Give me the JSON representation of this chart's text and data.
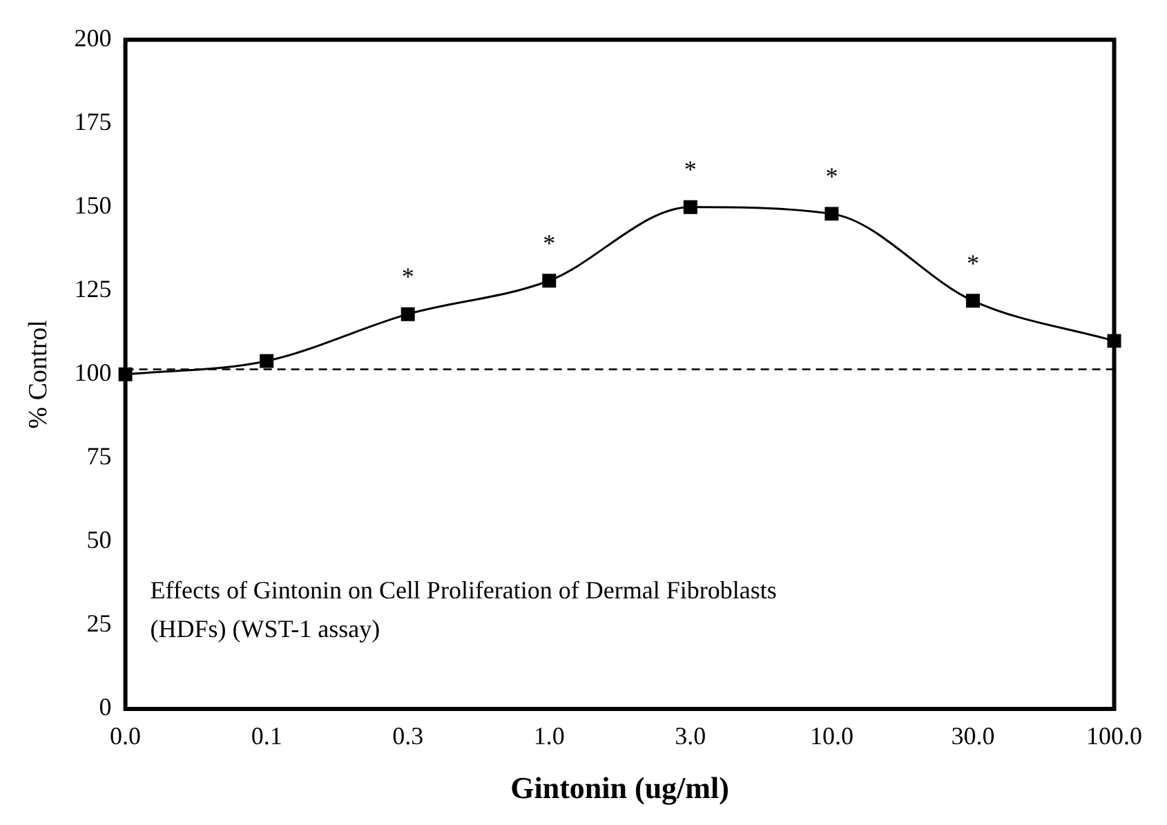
{
  "chart_data": {
    "type": "line",
    "xlabel": "Gintonin (ug/ml)",
    "ylabel": "% Control",
    "categories": [
      "0.0",
      "0.1",
      "0.3",
      "1.0",
      "3.0",
      "10.0",
      "30.0",
      "100.0"
    ],
    "series": [
      {
        "color": "#000000",
        "values": [
          100,
          104,
          118,
          128,
          150,
          148,
          122,
          110
        ]
      }
    ],
    "ylim": [
      0,
      200
    ],
    "yticks": [
      0,
      25,
      50,
      75,
      100,
      125,
      150,
      175,
      200
    ],
    "grid": false,
    "legend": false,
    "marker": "square",
    "line_style": "solid",
    "ref_lines": [
      {
        "axis": "y",
        "value": 101.5,
        "color": "#000000",
        "line_style": "dashed"
      }
    ],
    "annotations": [
      "Effects of Gintonin on Cell Proliferation of Dermal Fibroblasts (HDFs) (WST-1 assay)",
      {
        "text": "*",
        "x": "0.3",
        "y": 118
      },
      {
        "text": "*",
        "x": "1.0",
        "y": 128
      },
      {
        "text": "*",
        "x": "3.0",
        "y": 150
      },
      {
        "text": "*",
        "x": "10.0",
        "y": 148
      },
      {
        "text": "*",
        "x": "30.0",
        "y": 122
      }
    ]
  }
}
